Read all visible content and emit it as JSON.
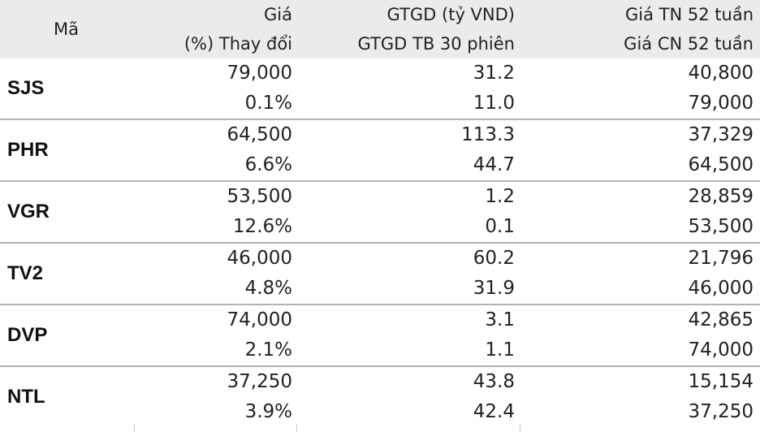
{
  "header": {
    "col_ticker": "Mã",
    "col1_line1": "Giá",
    "col1_line2": "(%) Thay đổi",
    "col2_line1": "GTGD (tỷ VND)",
    "col2_line2": "GTGD TB 30 phiên",
    "col3_line1": "Giá TN 52 tuần",
    "col3_line2": "Giá CN 52 tuần"
  },
  "rows": [
    {
      "ticker": "SJS",
      "price": "79,000",
      "change": "0.1%",
      "value": "31.2",
      "avg_value": "11.0",
      "low52": "40,800",
      "high52": "79,000"
    },
    {
      "ticker": "PHR",
      "price": "64,500",
      "change": "6.6%",
      "value": "113.3",
      "avg_value": "44.7",
      "low52": "37,329",
      "high52": "64,500"
    },
    {
      "ticker": "VGR",
      "price": "53,500",
      "change": "12.6%",
      "value": "1.2",
      "avg_value": "0.1",
      "low52": "28,859",
      "high52": "53,500"
    },
    {
      "ticker": "TV2",
      "price": "46,000",
      "change": "4.8%",
      "value": "60.2",
      "avg_value": "31.9",
      "low52": "21,796",
      "high52": "46,000"
    },
    {
      "ticker": "DVP",
      "price": "74,000",
      "change": "2.1%",
      "value": "3.1",
      "avg_value": "1.1",
      "low52": "42,865",
      "high52": "74,000"
    },
    {
      "ticker": "NTL",
      "price": "37,250",
      "change": "3.9%",
      "value": "43.8",
      "avg_value": "42.4",
      "low52": "15,154",
      "high52": "37,250"
    }
  ]
}
